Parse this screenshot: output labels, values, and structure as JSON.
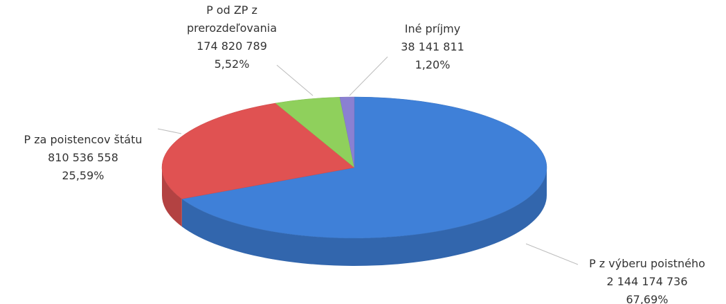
{
  "chart_data": {
    "type": "pie",
    "categories": [
      "P z výberu poistného",
      "P za poistencov štátu",
      "P od ZP z prerozdeľovania",
      "Iné príjmy"
    ],
    "values": [
      2144174736,
      810536558,
      174820789,
      38141811
    ],
    "value_labels": [
      "2 144 174 736",
      "810 536 558",
      "174 820 789",
      "38 141 811"
    ],
    "percentages": [
      67.69,
      25.59,
      5.52,
      1.2
    ],
    "percentage_labels": [
      "67,69%",
      "25,59%",
      "5,52%",
      "1,20%"
    ],
    "colors": [
      "#3f80d8",
      "#e05252",
      "#8fd05c",
      "#8a80d2"
    ]
  }
}
